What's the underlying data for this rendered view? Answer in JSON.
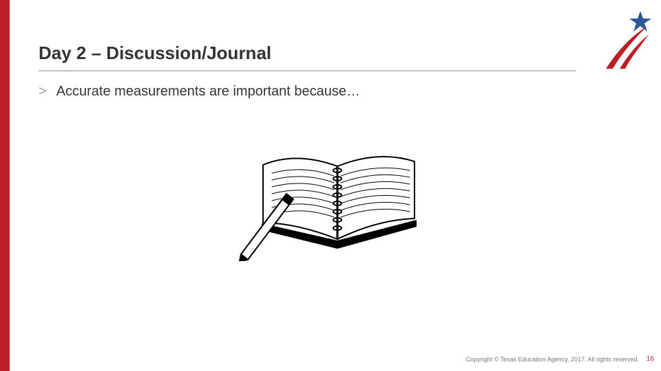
{
  "colors": {
    "red": "#bc2026",
    "text": "#333333",
    "bullet_marker": "#9e9e9e",
    "underline": "#bfbfbf",
    "copyright": "#7a7a7a",
    "page_number": "#bc2026",
    "star_blue": "#2b5797",
    "swoosh_red": "#bc2026",
    "swoosh_inner": "#ffffff",
    "black": "#000000",
    "white": "#ffffff"
  },
  "layout": {
    "red_bar_width": 14,
    "title_fontsize": 26,
    "bullet_fontsize": 20,
    "underline_width": 780
  },
  "title": "Day 2 – Discussion/Journal",
  "bullet": {
    "marker": ">",
    "text": "Accurate measurements are important because…"
  },
  "copyright": "Copyright © Texas Education Agency, 2017. All rights reserved.",
  "page_number": "16"
}
